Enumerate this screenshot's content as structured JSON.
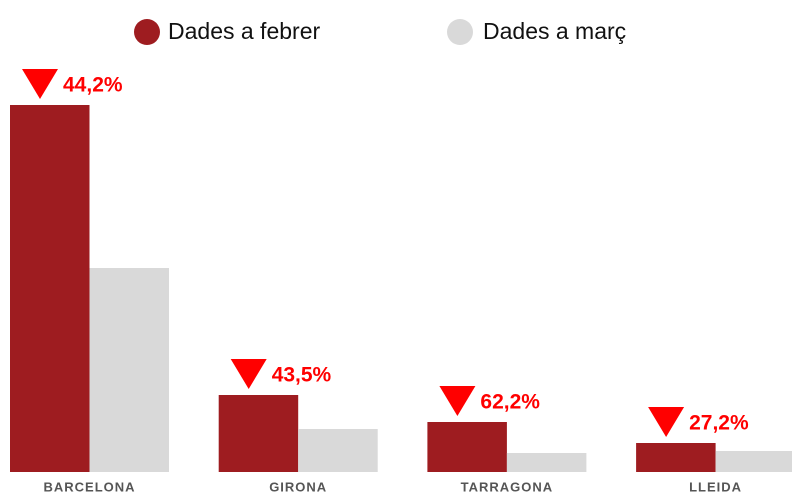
{
  "chart_data": {
    "type": "bar",
    "categories": [
      "BARCELONA",
      "GIRONA",
      "TARRAGONA",
      "LLEIDA"
    ],
    "series": [
      {
        "name": "Dades a febrer",
        "color": "#9e1c20",
        "values": [
          367,
          77,
          50,
          29
        ]
      },
      {
        "name": "Dades a març",
        "color": "#d9d9d9",
        "values": [
          204,
          43,
          19,
          21
        ]
      }
    ],
    "annotations": [
      "44,2%",
      "43,5%",
      "62,2%",
      "27,2%"
    ],
    "ylim": [
      0,
      400
    ]
  }
}
